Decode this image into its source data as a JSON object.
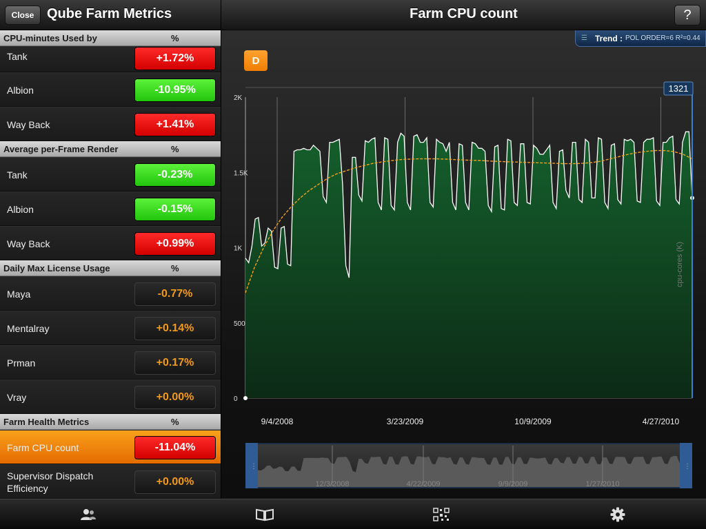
{
  "header": {
    "close_label": "Close",
    "app_title": "Qube Farm Metrics",
    "chart_title": "Farm CPU count",
    "help_label": "?"
  },
  "sections": [
    {
      "title": "CPU-minutes Used by",
      "pct_label": "%",
      "rows": [
        {
          "label": "Tank",
          "value": "+1.72%",
          "status": "red"
        },
        {
          "label": "Albion",
          "value": "-10.95%",
          "status": "green"
        },
        {
          "label": "Way Back",
          "value": "+1.41%",
          "status": "red"
        }
      ]
    },
    {
      "title": "Average per-Frame Render",
      "pct_label": "%",
      "rows": [
        {
          "label": "Tank",
          "value": "-0.23%",
          "status": "green"
        },
        {
          "label": "Albion",
          "value": "-0.15%",
          "status": "green"
        },
        {
          "label": "Way Back",
          "value": "+0.99%",
          "status": "red"
        }
      ]
    },
    {
      "title": "Daily Max License Usage",
      "pct_label": "%",
      "rows": [
        {
          "label": "Maya",
          "value": "-0.77%",
          "status": "neutral"
        },
        {
          "label": "Mentalray",
          "value": "+0.14%",
          "status": "neutral"
        },
        {
          "label": "Prman",
          "value": "+0.17%",
          "status": "neutral"
        },
        {
          "label": "Vray",
          "value": "+0.00%",
          "status": "neutral"
        }
      ]
    },
    {
      "title": "Farm Health Metrics",
      "pct_label": "%",
      "rows": [
        {
          "label": "Farm CPU count",
          "value": "-11.04%",
          "status": "red",
          "selected": true
        },
        {
          "label": "Supervisor Dispatch Efficiency",
          "value": "+0.00%",
          "status": "neutral"
        }
      ]
    }
  ],
  "trend": {
    "label": "Trend :",
    "detail": "POL ORDER=6 R²=0.44"
  },
  "period_button": "D",
  "colors": {
    "accent": "#f29a1b",
    "red": "#e00000",
    "green": "#33d11a",
    "area_fill": "#0f4d24",
    "trend_line": "#f0a020",
    "cursor": "#3a7fd0"
  },
  "chart_data": {
    "type": "area",
    "title": "Farm CPU count",
    "ylabel": "cpu-cores (K)",
    "ylim": [
      0,
      2000
    ],
    "y_ticks": [
      "0",
      "500",
      "1K",
      "1.5K",
      "2K"
    ],
    "x_ticks": [
      "9/4/2008",
      "3/23/2009",
      "10/9/2009",
      "4/27/2010"
    ],
    "cursor_value": "1321",
    "trend": "polynomial order 6",
    "grid": true,
    "series": [
      {
        "values": [
          930,
          900,
          1010,
          1190,
          1200,
          1010,
          1030,
          1130,
          1110,
          870,
          860,
          1130,
          1140,
          890,
          880,
          1640,
          1650,
          1650,
          1660,
          1650,
          1650,
          1680,
          1660,
          1640,
          1340,
          1300,
          1700,
          1700,
          1710,
          1720,
          1420,
          880,
          800,
          1600,
          1600,
          1350,
          1310,
          1710,
          1700,
          1720,
          1730,
          1300,
          1250,
          1730,
          1720,
          1280,
          1250,
          1700,
          1760,
          1740,
          1300,
          1250,
          1740,
          1750,
          1700,
          1700,
          1730,
          1300,
          1270,
          1720,
          1700,
          1690,
          1640,
          1700,
          1300,
          1250,
          1690,
          1680,
          1300,
          1250,
          1700,
          1690,
          1660,
          1660,
          1640,
          1280,
          1240,
          1670,
          1680,
          1260,
          1250,
          1720,
          1710,
          1300,
          1280,
          1690,
          1690,
          1300,
          1290,
          1680,
          1660,
          1620,
          1620,
          1650,
          1680,
          1300,
          1260,
          1640,
          1650,
          1380,
          1330,
          1700,
          1700,
          1320,
          1300,
          1720,
          1700,
          1330,
          1330,
          1730,
          1720,
          1300,
          1260,
          1680,
          1690,
          1320,
          1290,
          1720,
          1710,
          1720,
          1700,
          1310,
          1300,
          1700,
          1720,
          1720,
          1730,
          1310,
          1280,
          1700,
          1700,
          1730,
          1740,
          1320,
          1290,
          1700,
          1770,
          1770,
          1330
        ]
      },
      {
        "name": "Trend",
        "values": [
          700,
          870,
          1000,
          1110,
          1200,
          1270,
          1330,
          1380,
          1420,
          1460,
          1490,
          1510,
          1530,
          1545,
          1560,
          1570,
          1578,
          1585,
          1588,
          1590,
          1590,
          1590,
          1588,
          1585,
          1582,
          1580,
          1578,
          1575,
          1572,
          1570,
          1568,
          1566,
          1564,
          1562,
          1560,
          1558,
          1558,
          1560,
          1565,
          1575,
          1590,
          1605,
          1620,
          1632,
          1640,
          1645,
          1645,
          1638,
          1620,
          1590
        ]
      }
    ]
  },
  "navigator": {
    "x_ticks": [
      "12/3/2008",
      "4/22/2009",
      "9/9/2009",
      "1/27/2010"
    ]
  }
}
